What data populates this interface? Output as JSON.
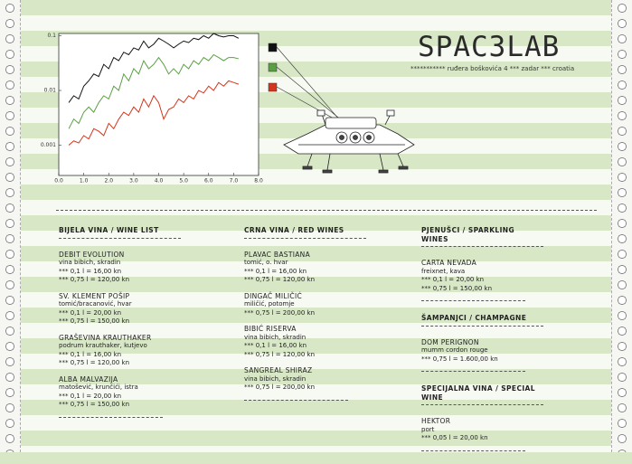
{
  "header": {
    "title": "SPAC3LAB",
    "address": "*********** ruđera boškovića 4 *** zadar *** croatia"
  },
  "chart_data": {
    "type": "line",
    "log_y": true,
    "x": [
      0.4,
      0.6,
      0.8,
      1,
      1.2,
      1.4,
      1.6,
      1.8,
      2,
      2.2,
      2.4,
      2.6,
      2.8,
      3,
      3.2,
      3.4,
      3.6,
      3.8,
      4,
      4.2,
      4.4,
      4.6,
      4.8,
      5,
      5.2,
      5.4,
      5.6,
      5.8,
      6,
      6.2,
      6.4,
      6.6,
      6.8,
      7,
      7.2
    ],
    "series": [
      {
        "color": "#111111",
        "values": [
          0.006,
          0.008,
          0.007,
          0.012,
          0.015,
          0.02,
          0.018,
          0.03,
          0.025,
          0.04,
          0.035,
          0.05,
          0.045,
          0.06,
          0.055,
          0.08,
          0.06,
          0.07,
          0.09,
          0.08,
          0.07,
          0.06,
          0.07,
          0.08,
          0.075,
          0.09,
          0.085,
          0.1,
          0.09,
          0.11,
          0.1,
          0.095,
          0.1,
          0.1,
          0.09
        ]
      },
      {
        "color": "#5aa043",
        "values": [
          0.002,
          0.003,
          0.0025,
          0.004,
          0.005,
          0.004,
          0.006,
          0.008,
          0.007,
          0.012,
          0.01,
          0.02,
          0.015,
          0.025,
          0.02,
          0.035,
          0.025,
          0.03,
          0.04,
          0.03,
          0.02,
          0.025,
          0.02,
          0.03,
          0.025,
          0.035,
          0.03,
          0.04,
          0.035,
          0.045,
          0.04,
          0.035,
          0.04,
          0.04,
          0.038
        ]
      },
      {
        "color": "#d3361c",
        "values": [
          0.001,
          0.0012,
          0.0011,
          0.0015,
          0.0013,
          0.002,
          0.0018,
          0.0015,
          0.0025,
          0.002,
          0.003,
          0.004,
          0.0035,
          0.005,
          0.004,
          0.007,
          0.005,
          0.008,
          0.006,
          0.003,
          0.0045,
          0.005,
          0.007,
          0.006,
          0.008,
          0.007,
          0.01,
          0.009,
          0.012,
          0.01,
          0.014,
          0.012,
          0.015,
          0.014,
          0.013
        ]
      }
    ],
    "xlim": [
      0,
      8
    ],
    "xticks": [
      {
        "value": 0,
        "label": "0.0"
      },
      {
        "value": 1,
        "label": "1.0"
      },
      {
        "value": 2,
        "label": "2.0"
      },
      {
        "value": 3,
        "label": "3.0"
      },
      {
        "value": 4,
        "label": "4.0"
      },
      {
        "value": 5,
        "label": "5.0"
      },
      {
        "value": 6,
        "label": "6.0"
      },
      {
        "value": 7,
        "label": "7.0"
      },
      {
        "value": 8,
        "label": "8.0"
      }
    ],
    "ylim": [
      0.00028,
      0.11
    ],
    "yticks": [
      0.001,
      0.01,
      0.1
    ]
  },
  "menu": {
    "columns": [
      {
        "sections": [
          {
            "heading": "BIJELA VINA / WINE LIST",
            "items": [
              {
                "name": "DEBIT EVOLUTION",
                "producer": "vina bibich, skradin",
                "prices": [
                  "*** 0,1 l = 16,00 kn",
                  "*** 0,75 l = 120,00 kn"
                ]
              },
              {
                "name": "SV. KLEMENT POŠIP",
                "producer": "tomić/bracanović, hvar",
                "prices": [
                  "*** 0,1 l = 20,00 kn",
                  "*** 0,75 l = 150,00 kn"
                ]
              },
              {
                "name": "GRAŠEVINA KRAUTHAKER",
                "producer": "podrum krauthaker, kutjevo",
                "prices": [
                  "*** 0,1 l = 16,00 kn",
                  "*** 0,75 l = 120,00 kn"
                ]
              },
              {
                "name": "ALBA MALVAZIJA",
                "producer": "matošević, krunčići, istra",
                "prices": [
                  "*** 0,1 l = 20,00 kn",
                  "*** 0,75 l = 150,00 kn"
                ]
              }
            ]
          }
        ]
      },
      {
        "sections": [
          {
            "heading": "CRNA VINA / RED WINES",
            "items": [
              {
                "name": "PLAVAC BASTIANA",
                "producer": "tomić, o. hvar",
                "prices": [
                  "*** 0,1 l = 16,00 kn",
                  "*** 0,75 l = 120,00 kn"
                ]
              },
              {
                "name": "DINGAČ MILIČIĆ",
                "producer": "miličić, potomje",
                "prices": [
                  "*** 0,75 l = 200,00 kn"
                ]
              },
              {
                "name": "BIBIĆ RISERVA",
                "producer": "vina bibich, skradin",
                "prices": [
                  "*** 0,1 l = 16,00 kn",
                  "*** 0,75 l = 120,00 kn"
                ]
              },
              {
                "name": "SANGREAL SHIRAZ",
                "producer": "vina bibich, skradin",
                "prices": [
                  "*** 0,75 l = 200,00 kn"
                ]
              }
            ]
          }
        ]
      },
      {
        "sections": [
          {
            "heading": "PJENUŠCI / SPARKLING WINES",
            "items": [
              {
                "name": "CARTA NEVADA",
                "producer": "freixnet, kava",
                "prices": [
                  "*** 0,1 l = 20,00 kn",
                  "*** 0,75 l = 150,00 kn"
                ]
              }
            ]
          },
          {
            "heading": "ŠAMPANJCI / CHAMPAGNE",
            "items": [
              {
                "name": "DOM PERIGNON",
                "producer": "mumm cordon rouge",
                "prices": [
                  "*** 0,75 l = 1.600,00 kn"
                ]
              }
            ]
          },
          {
            "heading": "SPECIJALNA VINA / SPECIAL WINE",
            "items": [
              {
                "name": "HEKTOR",
                "producer": "port",
                "prices": [
                  "*** 0,05 l = 20,00 kn"
                ]
              }
            ]
          }
        ]
      }
    ]
  }
}
